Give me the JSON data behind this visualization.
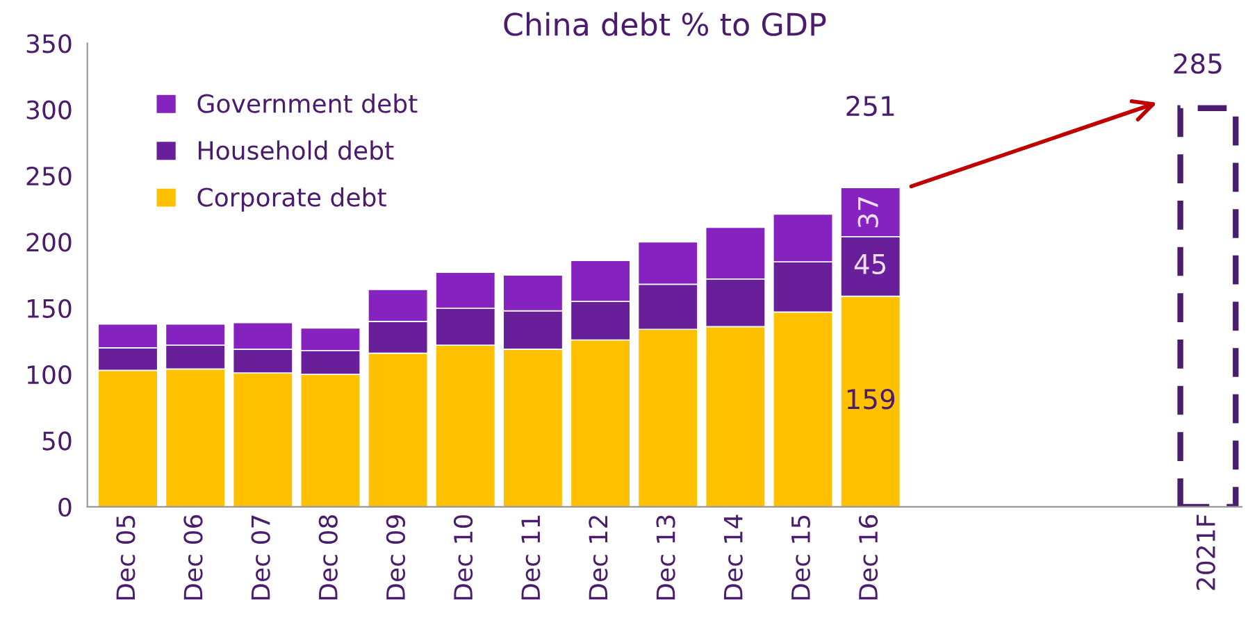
{
  "chart_data": {
    "type": "bar",
    "title": "China debt % to GDP",
    "stacked": true,
    "categories": [
      "Dec 05",
      "Dec 06",
      "Dec 07",
      "Dec 08",
      "Dec 09",
      "Dec 10",
      "Dec 11",
      "Dec 12",
      "Dec 13",
      "Dec 14",
      "Dec 15",
      "Dec 16",
      null,
      null,
      null,
      null,
      "2021F"
    ],
    "series": [
      {
        "name": "Corporate debt",
        "color": "#ffc000",
        "values": [
          103,
          104,
          101,
          100,
          116,
          122,
          119,
          126,
          134,
          136,
          147,
          159,
          null,
          null,
          null,
          null,
          null
        ],
        "value_labels": [
          null,
          null,
          null,
          null,
          null,
          null,
          null,
          null,
          null,
          null,
          null,
          "159",
          null,
          null,
          null,
          null,
          null
        ]
      },
      {
        "name": "Household debt",
        "color": "#6a1f9a",
        "values": [
          17,
          18,
          18,
          18,
          24,
          28,
          29,
          29,
          34,
          36,
          38,
          45,
          null,
          null,
          null,
          null,
          null
        ],
        "value_labels": [
          null,
          null,
          null,
          null,
          null,
          null,
          null,
          null,
          null,
          null,
          null,
          "45",
          null,
          null,
          null,
          null,
          null
        ]
      },
      {
        "name": "Government debt",
        "color": "#8522c0",
        "values": [
          18,
          16,
          20,
          17,
          24,
          27,
          27,
          31,
          32,
          39,
          36,
          37,
          null,
          null,
          null,
          null,
          null
        ],
        "value_labels": [
          null,
          null,
          null,
          null,
          null,
          null,
          null,
          null,
          null,
          null,
          null,
          "37",
          null,
          null,
          null,
          null,
          null
        ]
      },
      {
        "color": "#4b1b6e",
        "line_style": "dashed",
        "values": [
          null,
          null,
          null,
          null,
          null,
          null,
          null,
          null,
          null,
          null,
          null,
          null,
          null,
          null,
          null,
          null,
          301
        ]
      }
    ],
    "ylim": [
      0,
      350
    ],
    "yticks": [
      0,
      50,
      100,
      150,
      200,
      250,
      300,
      350
    ],
    "annotations": [
      "251",
      "285"
    ],
    "legend": "top left",
    "grid": false
  }
}
